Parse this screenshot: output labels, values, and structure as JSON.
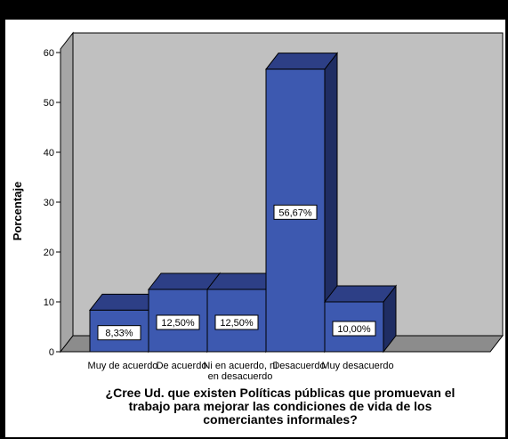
{
  "chart_data": {
    "type": "bar",
    "categories": [
      [
        "Muy de acuerdo"
      ],
      [
        "De acuerdo"
      ],
      [
        "Ni en acuerdo, ni",
        "en desacuerdo"
      ],
      [
        "Desacuerdo"
      ],
      [
        "Muy desacuerdo"
      ]
    ],
    "values": [
      8.33,
      12.5,
      12.5,
      56.67,
      10.0
    ],
    "data_labels": [
      "8,33%",
      "12,50%",
      "12,50%",
      "56,67%",
      "10,00%"
    ],
    "ylabel": "Porcentaje",
    "xlabel_lines": [
      "¿Cree Ud. que existen Políticas públicas que promuevan el",
      "trabajo para mejorar las condiciones de vida de los",
      "comerciantes informales?"
    ],
    "ylim": [
      0,
      60
    ],
    "yticks": [
      0,
      10,
      20,
      30,
      40,
      50,
      60
    ],
    "grid": false,
    "style": "3d-bar"
  },
  "colors": {
    "bar_front": "#3d59b0",
    "bar_top": "#2d3f86",
    "bar_side": "#1f2d63",
    "wall": "#c0c0c0",
    "floor": "#8c8c8c",
    "wall_side": "#a6a6a6"
  }
}
